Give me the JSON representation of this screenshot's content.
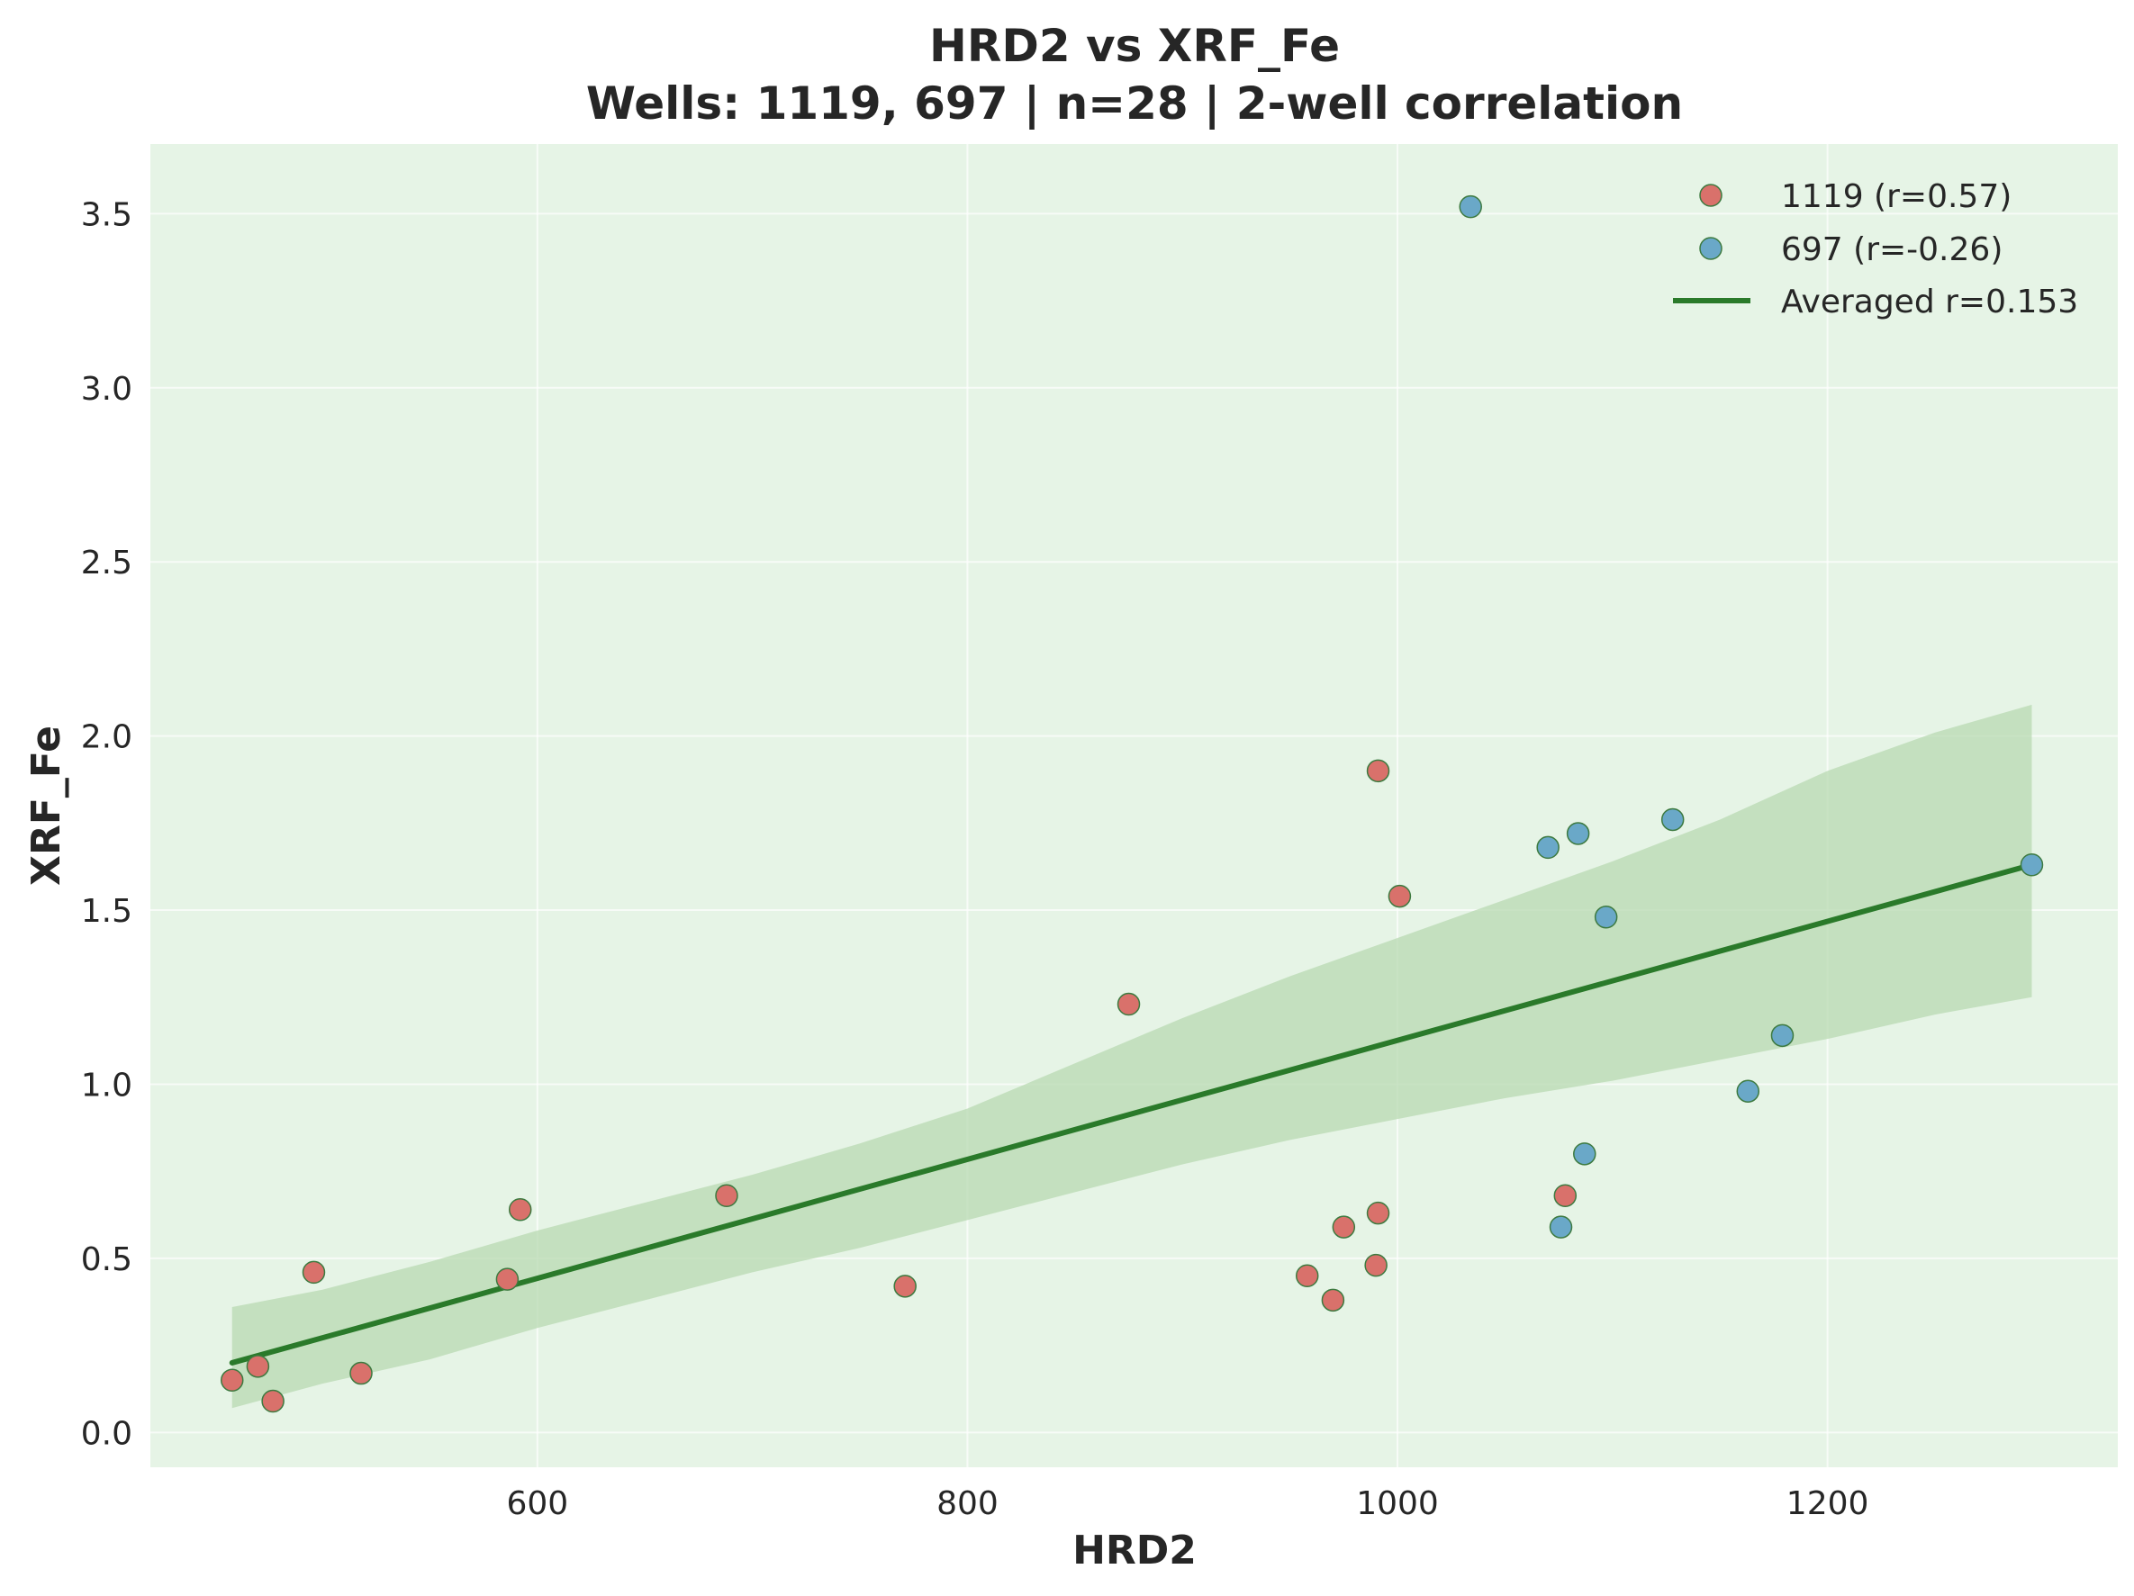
{
  "chart_data": {
    "type": "scatter",
    "title": "HRD2 vs XRF_Fe",
    "subtitle": "Wells: 1119, 697 | n=28 | 2-well correlation",
    "xlabel": "HRD2",
    "ylabel": "XRF_Fe",
    "xlim": [
      420,
      1335
    ],
    "ylim": [
      -0.1,
      3.7
    ],
    "xticks": [
      600,
      800,
      1000,
      1200
    ],
    "xtick_labels": [
      "600",
      "800",
      "1000",
      "1200"
    ],
    "yticks": [
      0.0,
      0.5,
      1.0,
      1.5,
      2.0,
      2.5,
      3.0,
      3.5
    ],
    "ytick_labels": [
      "0.0",
      "0.5",
      "1.0",
      "1.5",
      "2.0",
      "2.5",
      "3.0",
      "3.5"
    ],
    "grid": true,
    "legend_position": "top-right",
    "colors": {
      "background": "#e6f4e6",
      "well_1119": "#d9716b",
      "well_697": "#6aa8c8",
      "marker_edge": "#3d7a40",
      "fit_line": "#2a7a2a",
      "confidence_band": "#b8d9b2"
    },
    "series": [
      {
        "name": "1119 (r=0.57)",
        "well": "1119",
        "r": 0.57,
        "points": [
          {
            "x": 458,
            "y": 0.15
          },
          {
            "x": 470,
            "y": 0.19
          },
          {
            "x": 477,
            "y": 0.09
          },
          {
            "x": 496,
            "y": 0.46
          },
          {
            "x": 518,
            "y": 0.17
          },
          {
            "x": 586,
            "y": 0.44
          },
          {
            "x": 592,
            "y": 0.64
          },
          {
            "x": 688,
            "y": 0.68
          },
          {
            "x": 771,
            "y": 0.42
          },
          {
            "x": 875,
            "y": 1.23
          },
          {
            "x": 958,
            "y": 0.45
          },
          {
            "x": 970,
            "y": 0.38
          },
          {
            "x": 975,
            "y": 0.59
          },
          {
            "x": 990,
            "y": 0.48
          },
          {
            "x": 991,
            "y": 0.63
          },
          {
            "x": 991,
            "y": 1.9
          },
          {
            "x": 1001,
            "y": 1.54
          },
          {
            "x": 1078,
            "y": 0.68
          }
        ]
      },
      {
        "name": "697 (r=-0.26)",
        "well": "697",
        "r": -0.26,
        "points": [
          {
            "x": 1034,
            "y": 3.52
          },
          {
            "x": 1070,
            "y": 1.68
          },
          {
            "x": 1076,
            "y": 0.59
          },
          {
            "x": 1084,
            "y": 1.72
          },
          {
            "x": 1087,
            "y": 0.8
          },
          {
            "x": 1097,
            "y": 1.48
          },
          {
            "x": 1128,
            "y": 1.76
          },
          {
            "x": 1163,
            "y": 0.98
          },
          {
            "x": 1179,
            "y": 1.14
          },
          {
            "x": 1295,
            "y": 1.63
          }
        ]
      }
    ],
    "fit": {
      "name": "Averaged r=0.153",
      "x": [
        458,
        1295
      ],
      "y": [
        0.2,
        1.63
      ]
    },
    "confidence_band": {
      "x": [
        458,
        500,
        550,
        600,
        650,
        700,
        750,
        800,
        850,
        900,
        950,
        1000,
        1050,
        1100,
        1150,
        1200,
        1250,
        1295
      ],
      "upper": [
        0.36,
        0.41,
        0.49,
        0.58,
        0.66,
        0.74,
        0.83,
        0.93,
        1.06,
        1.19,
        1.31,
        1.42,
        1.53,
        1.64,
        1.76,
        1.9,
        2.01,
        2.09
      ],
      "lower": [
        0.07,
        0.14,
        0.21,
        0.3,
        0.38,
        0.46,
        0.53,
        0.61,
        0.69,
        0.77,
        0.84,
        0.9,
        0.96,
        1.01,
        1.07,
        1.13,
        1.2,
        1.25
      ]
    }
  }
}
